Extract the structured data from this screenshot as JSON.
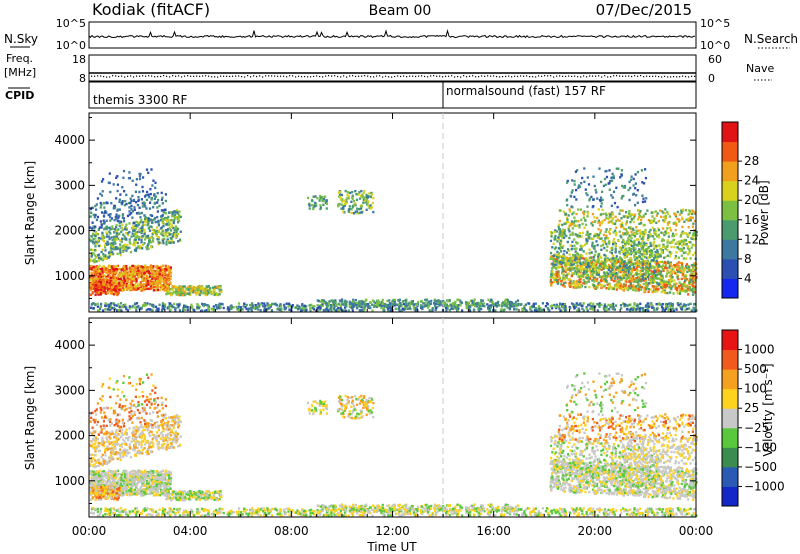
{
  "header": {
    "station": "Kodiak (fitACF)",
    "beam": "Beam 00",
    "date": "07/Dec/2015"
  },
  "top_panels": {
    "nsky_label": "N.Sky",
    "nsky_ticks": [
      "10^5",
      "10^0"
    ],
    "nsearch_label": "N.Search",
    "nsearch_ticks": [
      "10^5",
      "10^0"
    ],
    "freq_label_1": "Freq.",
    "freq_label_2": "[MHz]",
    "freq_ticks": [
      "18",
      "8"
    ],
    "nave_label": "Nave",
    "nave_ticks": [
      "60",
      "0"
    ],
    "cpid_label": "CPID",
    "cpid_modes": [
      {
        "text": "themis 3300 RF",
        "start_hour": 0
      },
      {
        "text": "normalsound (fast) 157 RF",
        "start_hour": 14
      }
    ]
  },
  "chart_data": [
    {
      "type": "heatmap",
      "name": "power-panel",
      "ylabel": "Slant Range [km]",
      "y_ticks": [
        1000,
        2000,
        3000,
        4000
      ],
      "ylim": [
        200,
        4600
      ],
      "xlim": [
        0,
        24
      ],
      "colorbar": {
        "label": "Power [dB]",
        "ticks": [
          "4",
          "8",
          "12",
          "16",
          "20",
          "24",
          "28"
        ],
        "colors": [
          "#1428f0",
          "#2c4fb2",
          "#3c78a0",
          "#4a9b6e",
          "#7bc043",
          "#d8d21e",
          "#f0a01c",
          "#f05a14",
          "#e01414"
        ]
      }
    },
    {
      "type": "heatmap",
      "name": "velocity-panel",
      "ylabel": "Slant Range [km]",
      "y_ticks": [
        1000,
        2000,
        3000,
        4000
      ],
      "ylim": [
        200,
        4600
      ],
      "xlim": [
        0,
        24
      ],
      "xlabel": "Time UT",
      "x_ticks": [
        "00:00",
        "04:00",
        "08:00",
        "12:00",
        "16:00",
        "20:00",
        "00:00"
      ],
      "colorbar": {
        "label": "Velocity [m s⁻¹]",
        "ticks": [
          "1000",
          "500",
          "100",
          "25",
          "−25",
          "−100",
          "−500",
          "−1000"
        ],
        "colors": [
          "#1428c8",
          "#2a5ab4",
          "#3c8c50",
          "#5ac83c",
          "#c8c8c8",
          "#ffd21e",
          "#f5a01e",
          "#f05a1e",
          "#e61414"
        ]
      }
    }
  ]
}
